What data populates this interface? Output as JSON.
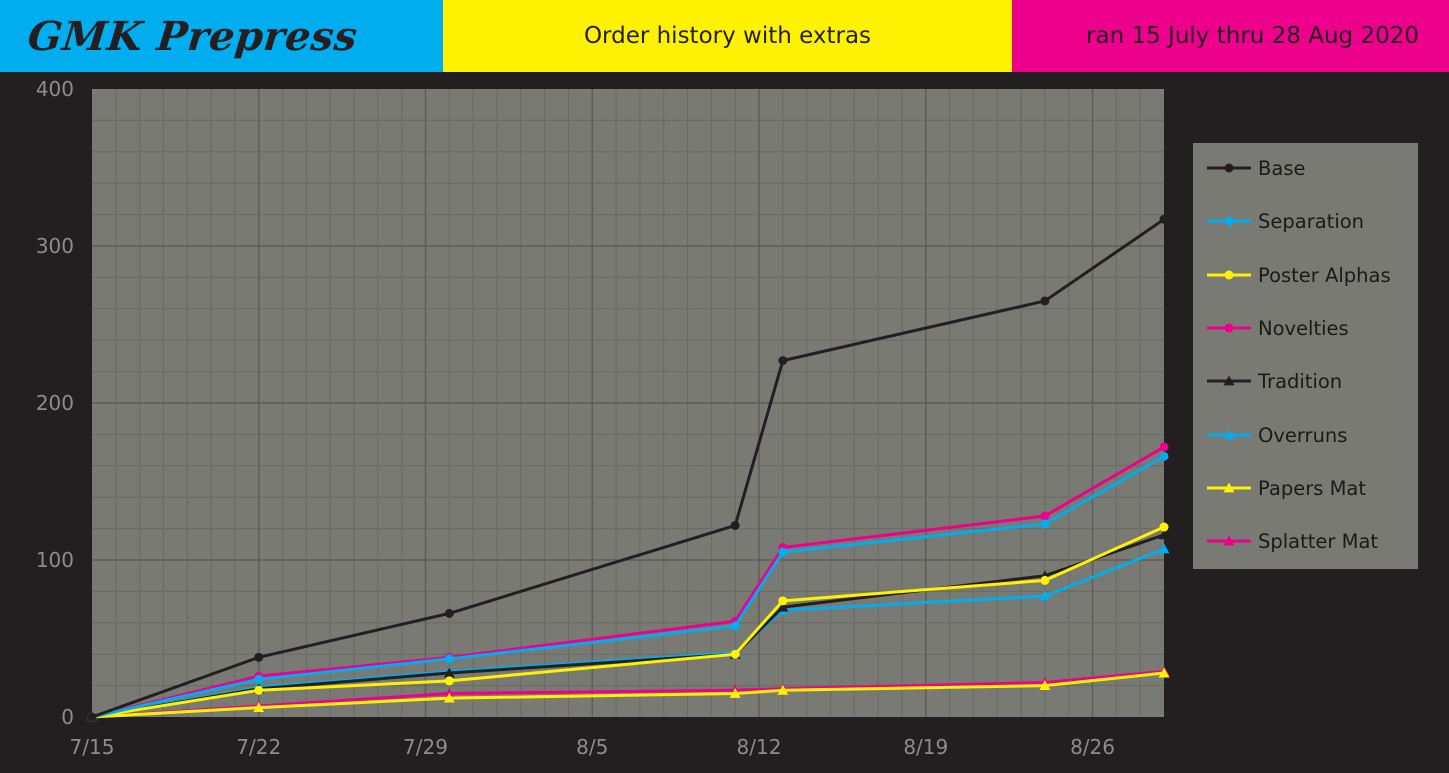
{
  "header": {
    "brand": "GMK Prepress",
    "title": "Order history with extras",
    "date_range": "ran 15 July thru 28 Aug 2020"
  },
  "colors": {
    "cyan": "#00aeef",
    "yellow": "#fff200",
    "magenta": "#ec008c",
    "black": "#231f20",
    "plot_bg": "#7a7a74",
    "grid": "#6a6a64"
  },
  "chart_data": {
    "type": "line",
    "title": "",
    "xlabel": "",
    "ylabel": "",
    "ylim": [
      0,
      400
    ],
    "xlim": [
      "2020-07-15",
      "2020-08-29"
    ],
    "x_ticks": [
      "7/15",
      "7/22",
      "7/29",
      "8/5",
      "8/12",
      "8/19",
      "8/26"
    ],
    "y_ticks": [
      "0",
      "100",
      "200",
      "300",
      "400"
    ],
    "grid": true,
    "legend_position": "right",
    "x": [
      "2020-07-15",
      "2020-07-22",
      "2020-07-30",
      "2020-08-11",
      "2020-08-13",
      "2020-08-24",
      "2020-08-29"
    ],
    "series": [
      {
        "name": "Base",
        "color": "#231f20",
        "marker": "circle",
        "values": [
          0,
          38,
          66,
          122,
          227,
          265,
          317
        ]
      },
      {
        "name": "Separation",
        "color": "#00aeef",
        "marker": "circle",
        "values": [
          0,
          24,
          37,
          58,
          105,
          123,
          166
        ]
      },
      {
        "name": "Poster Alphas",
        "color": "#fff200",
        "marker": "circle",
        "values": [
          0,
          17,
          23,
          40,
          74,
          87,
          121
        ]
      },
      {
        "name": "Novelties",
        "color": "#ec008c",
        "marker": "circle",
        "values": [
          0,
          26,
          38,
          61,
          108,
          128,
          172
        ]
      },
      {
        "name": "Tradition",
        "color": "#231f20",
        "marker": "triangle",
        "values": [
          0,
          18,
          28,
          40,
          70,
          90,
          116
        ]
      },
      {
        "name": "Overruns",
        "color": "#00aeef",
        "marker": "triangle",
        "values": [
          0,
          19,
          29,
          41,
          68,
          77,
          107
        ]
      },
      {
        "name": "Papers Mat",
        "color": "#fff200",
        "marker": "triangle",
        "values": [
          0,
          6,
          12,
          15,
          17,
          20,
          28
        ]
      },
      {
        "name": "Splatter Mat",
        "color": "#ec008c",
        "marker": "triangle",
        "values": [
          0,
          7,
          15,
          17,
          18,
          22,
          29
        ]
      }
    ]
  }
}
